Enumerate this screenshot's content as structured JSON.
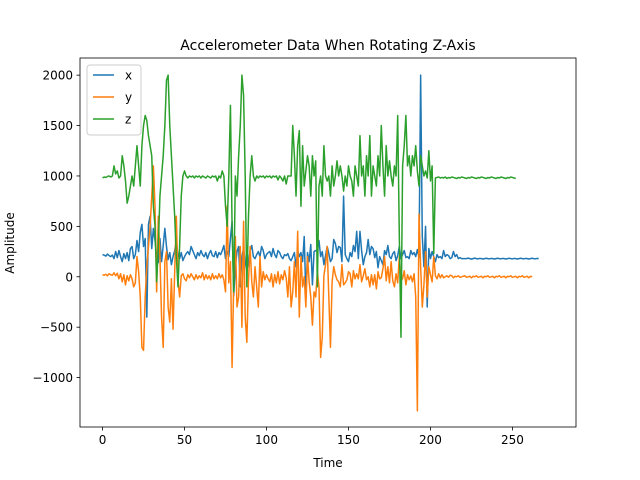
{
  "chart_data": {
    "type": "line",
    "title": "Accelerometer Data When Rotating Z-Axis",
    "xlabel": "Time",
    "ylabel": "Amplitude",
    "xlim": [
      -13.75,
      288.75
    ],
    "ylim": [
      -1490,
      2170
    ],
    "xticks": [
      0,
      50,
      100,
      150,
      200,
      250
    ],
    "yticks": [
      -1000,
      -500,
      0,
      500,
      1000,
      1500,
      2000
    ],
    "ytick_labels": [
      "−1000",
      "−500",
      "0",
      "500",
      "1000",
      "1500",
      "2000"
    ],
    "grid": false,
    "legend_position": "top-left",
    "series": [
      {
        "name": "x",
        "color": "#1f77b4",
        "values": [
          220,
          215,
          205,
          225,
          210,
          200,
          215,
          180,
          250,
          190,
          260,
          200,
          150,
          230,
          180,
          240,
          160,
          280,
          300,
          180,
          220,
          360,
          250,
          440,
          520,
          300,
          380,
          -400,
          520,
          600,
          280,
          480,
          360,
          200,
          140,
          380,
          150,
          310,
          480,
          300,
          170,
          240,
          120,
          200,
          260,
          350,
          210,
          180,
          240,
          160,
          200,
          230,
          250,
          220,
          300,
          260,
          220,
          180,
          240,
          210,
          260,
          220,
          200,
          240,
          180,
          230,
          260,
          210,
          200,
          250,
          190,
          240,
          220,
          260,
          310,
          180,
          250,
          200,
          380,
          550,
          -190,
          100,
          250,
          300,
          -100,
          200,
          280,
          150,
          60,
          150,
          260,
          310,
          200,
          180,
          220,
          250,
          200,
          300,
          260,
          180,
          220,
          240,
          250,
          200,
          280,
          220,
          190,
          260,
          240,
          200,
          180,
          220,
          210,
          230,
          180,
          160,
          200,
          240,
          100,
          260,
          200,
          240,
          150,
          400,
          -200,
          240,
          150,
          320,
          -80,
          250,
          260,
          260,
          360,
          200,
          250,
          120,
          210,
          300,
          230,
          150,
          180,
          370,
          330,
          240,
          300,
          290,
          150,
          800,
          220,
          180,
          150,
          240,
          200,
          310,
          250,
          450,
          180,
          450,
          260,
          120,
          200,
          240,
          370,
          220,
          300,
          280,
          190,
          250,
          90,
          200,
          160,
          120,
          260,
          220,
          310,
          200,
          180,
          230,
          250,
          160,
          210,
          300,
          180,
          220,
          260,
          190,
          200,
          180,
          260,
          220,
          240,
          200,
          270,
          190,
          2000,
          400,
          100,
          500,
          -300,
          280,
          180,
          250,
          200,
          150,
          220,
          190,
          200,
          180,
          260,
          200,
          220,
          210,
          180,
          190,
          250,
          200,
          220,
          180,
          190,
          180,
          180,
          180,
          180,
          185,
          180,
          175,
          180,
          185,
          180,
          178,
          182,
          180,
          176,
          180,
          184,
          180,
          178,
          182,
          180,
          176,
          180,
          184,
          180,
          178,
          182,
          180,
          176,
          180,
          184,
          180,
          178,
          182,
          180,
          176,
          180,
          184,
          180,
          178,
          182,
          180,
          176,
          180,
          184,
          180,
          178,
          182,
          180
        ]
      },
      {
        "name": "y",
        "color": "#ff7f0e",
        "values": [
          20,
          15,
          25,
          10,
          30,
          20,
          15,
          40,
          10,
          35,
          -20,
          30,
          -50,
          20,
          -80,
          10,
          -40,
          20,
          -20,
          -100,
          -60,
          200,
          50,
          -200,
          -700,
          -730,
          -200,
          100,
          300,
          500,
          800,
          1100,
          700,
          -150,
          600,
          200,
          -400,
          -700,
          150,
          250,
          -300,
          -450,
          -20,
          -520,
          50,
          600,
          -30,
          -200,
          10,
          30,
          -20,
          -40,
          20,
          -10,
          30,
          0,
          -30,
          20,
          -20,
          10,
          -10,
          40,
          -30,
          20,
          -20,
          10,
          -30,
          30,
          -20,
          10,
          -20,
          30,
          -10,
          20,
          -30,
          -150,
          700,
          -60,
          150,
          -900,
          -50,
          400,
          -300,
          -200,
          300,
          -500,
          550,
          -400,
          -650,
          -40,
          300,
          -50,
          -200,
          100,
          -100,
          -300,
          200,
          -100,
          50,
          -30,
          20,
          -20,
          -50,
          30,
          -100,
          20,
          -60,
          50,
          -70,
          20,
          -30,
          60,
          -10,
          -200,
          100,
          -300,
          -150,
          150,
          -200,
          450,
          -400,
          200,
          -100,
          0,
          -300,
          200,
          -50,
          -200,
          -480,
          -150,
          -200,
          50,
          -100,
          -800,
          -600,
          10,
          120,
          300,
          -200,
          -700,
          -50,
          100,
          20,
          -30,
          -50,
          -100,
          120,
          -80,
          -60,
          -30,
          50,
          30,
          -100,
          60,
          -20,
          30,
          -20,
          120,
          -50,
          10,
          80,
          -30,
          0,
          -100,
          20,
          -80,
          20,
          -120,
          50,
          -20,
          -10,
          80,
          200,
          -40,
          100,
          -60,
          150,
          -40,
          -100,
          30,
          -60,
          200,
          -40,
          -20,
          60,
          -80,
          20,
          -30,
          10,
          -50,
          30,
          -200,
          -1330,
          620,
          100,
          -300,
          -80,
          250,
          -200,
          100,
          20,
          -50,
          200,
          10,
          -20,
          30,
          -10,
          20,
          -10,
          0,
          10,
          -5,
          15,
          10,
          -10,
          5,
          0,
          10,
          -5,
          0,
          5,
          10,
          -5,
          0,
          5,
          -10,
          5,
          0,
          10,
          -5,
          0,
          5,
          -10,
          5,
          0,
          10,
          -5,
          0,
          5,
          -10,
          5,
          0,
          10,
          -5,
          0,
          5,
          -10,
          5,
          0,
          10,
          -5,
          0,
          5,
          -10,
          5,
          0,
          10,
          -5,
          0,
          5,
          -10,
          5,
          0
        ]
      },
      {
        "name": "z",
        "color": "#2ca02c",
        "values": [
          980,
          990,
          985,
          995,
          1000,
          990,
          1000,
          1100,
          1020,
          1050,
          980,
          1000,
          1200,
          1100,
          950,
          730,
          800,
          900,
          1000,
          900,
          1100,
          1300,
          1100,
          900,
          1300,
          1500,
          1600,
          1550,
          1400,
          1300,
          1200,
          700,
          500,
          -50,
          300,
          800,
          1000,
          1200,
          1500,
          1950,
          2000,
          1500,
          1200,
          900,
          600,
          200,
          -100,
          300,
          800,
          1000,
          1050,
          1000,
          980,
          1000,
          990,
          1000,
          980,
          1000,
          990,
          1000,
          980,
          1000,
          990,
          980,
          1000,
          990,
          980,
          1000,
          990,
          1000,
          950,
          1000,
          980,
          1050,
          1000,
          700,
          500,
          1000,
          1700,
          500,
          -150,
          1000,
          800,
          1200,
          1500,
          2000,
          1800,
          1000,
          -100,
          600,
          1000,
          1200,
          1000,
          950,
          1000,
          980,
          1000,
          990,
          1000,
          980,
          1000,
          990,
          1000,
          980,
          1000,
          990,
          1000,
          960,
          1000,
          980,
          950,
          1000,
          920,
          1000,
          1000,
          1000,
          1500,
          1200,
          800,
          1300,
          1450,
          700,
          1300,
          900,
          1050,
          1200,
          1100,
          800,
          1200,
          1000,
          1150,
          -100,
          900,
          1000,
          800,
          1300,
          1000,
          950,
          1000,
          800,
          1100,
          900,
          1000,
          1150,
          1000,
          1100,
          1000,
          850,
          1000,
          900,
          1100,
          1000,
          950,
          800,
          1100,
          1000,
          900,
          1400,
          1000,
          1100,
          800,
          1200,
          1000,
          1400,
          800,
          1100,
          1000,
          900,
          1200,
          1000,
          1500,
          1100,
          800,
          1300,
          1000,
          1150,
          1000,
          900,
          1100,
          1000,
          1600,
          400,
          -600,
          1100,
          1300,
          1600,
          1100,
          1200,
          1000,
          1200,
          1100,
          1300,
          1050,
          900,
          1200,
          1100,
          1000,
          1050,
          980,
          1250,
          950,
          1100,
          230,
          980,
          985,
          990,
          980,
          985,
          980,
          990,
          975,
          985,
          980,
          990,
          985,
          980,
          975,
          985,
          980,
          990,
          985,
          980,
          975,
          985,
          980,
          990,
          985,
          980,
          975,
          985,
          980,
          990,
          985,
          980,
          975,
          985,
          980,
          990,
          985,
          980,
          975,
          985,
          980,
          990,
          985,
          980,
          975,
          985,
          980,
          990,
          985,
          980,
          975
        ]
      }
    ]
  }
}
